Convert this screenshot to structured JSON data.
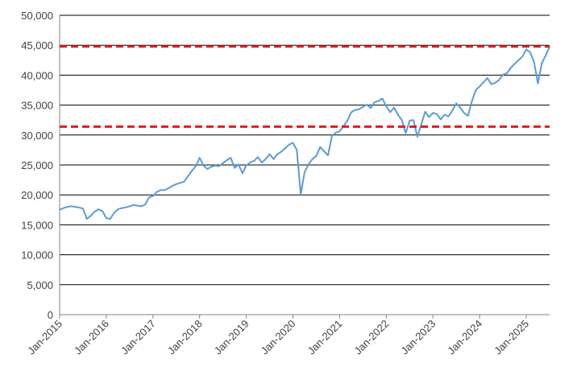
{
  "chart_data": {
    "type": "line",
    "title": "",
    "xlabel": "",
    "ylabel": "",
    "ylim": [
      0,
      50000
    ],
    "y_ticks": [
      0,
      5000,
      10000,
      15000,
      20000,
      25000,
      30000,
      35000,
      40000,
      45000,
      50000
    ],
    "y_tick_labels": [
      "0",
      "5,000",
      "10,000",
      "15,000",
      "20,000",
      "25,000",
      "30,000",
      "35,000",
      "40,000",
      "45,000",
      "50,000"
    ],
    "x_tick_labels": [
      "Jan-2015",
      "Jan-2016",
      "Jan-2017",
      "Jan-2018",
      "Jan-2019",
      "Jan-2020",
      "Jan-2021",
      "Jan-2022",
      "Jan-2023",
      "Jan-2024",
      "Jan-2025"
    ],
    "xlim": [
      "2015-01",
      "2025-07"
    ],
    "grid": "horizontal",
    "legend": "none",
    "colors": {
      "series": "#5b9bd5",
      "reference": "#e31a1c",
      "grid": "#000000",
      "axis": "#808080"
    },
    "series": [
      {
        "x": [
          "2015-01",
          "2015-02",
          "2015-03",
          "2015-04",
          "2015-05",
          "2015-06",
          "2015-07",
          "2015-08",
          "2015-09",
          "2015-10",
          "2015-11",
          "2015-12",
          "2016-01",
          "2016-02",
          "2016-03",
          "2016-04",
          "2016-05",
          "2016-06",
          "2016-07",
          "2016-08",
          "2016-09",
          "2016-10",
          "2016-11",
          "2016-12",
          "2017-01",
          "2017-02",
          "2017-03",
          "2017-04",
          "2017-05",
          "2017-06",
          "2017-07",
          "2017-08",
          "2017-09",
          "2017-10",
          "2017-11",
          "2017-12",
          "2018-01",
          "2018-02",
          "2018-03",
          "2018-04",
          "2018-05",
          "2018-06",
          "2018-07",
          "2018-08",
          "2018-09",
          "2018-10",
          "2018-11",
          "2018-12",
          "2019-01",
          "2019-02",
          "2019-03",
          "2019-04",
          "2019-05",
          "2019-06",
          "2019-07",
          "2019-08",
          "2019-09",
          "2019-10",
          "2019-11",
          "2019-12",
          "2020-01",
          "2020-02",
          "2020-03",
          "2020-04",
          "2020-05",
          "2020-06",
          "2020-07",
          "2020-08",
          "2020-09",
          "2020-10",
          "2020-11",
          "2020-12",
          "2021-01",
          "2021-02",
          "2021-03",
          "2021-04",
          "2021-05",
          "2021-06",
          "2021-07",
          "2021-08",
          "2021-09",
          "2021-10",
          "2021-11",
          "2021-12",
          "2022-01",
          "2022-02",
          "2022-03",
          "2022-04",
          "2022-05",
          "2022-06",
          "2022-07",
          "2022-08",
          "2022-09",
          "2022-10",
          "2022-11",
          "2022-12",
          "2023-01",
          "2023-02",
          "2023-03",
          "2023-04",
          "2023-05",
          "2023-06",
          "2023-07",
          "2023-08",
          "2023-09",
          "2023-10",
          "2023-11",
          "2023-12",
          "2024-01",
          "2024-02",
          "2024-03",
          "2024-04",
          "2024-05",
          "2024-06",
          "2024-07",
          "2024-08",
          "2024-09",
          "2024-10",
          "2024-11",
          "2024-12",
          "2025-01",
          "2025-02",
          "2025-03",
          "2025-04",
          "2025-05",
          "2025-06",
          "2025-07"
        ],
        "values": [
          17500,
          17800,
          18000,
          18100,
          18000,
          17900,
          17700,
          16000,
          16500,
          17200,
          17600,
          17300,
          16100,
          16000,
          17000,
          17600,
          17800,
          17900,
          18100,
          18300,
          18200,
          18100,
          18400,
          19600,
          19800,
          20500,
          20800,
          20800,
          21100,
          21500,
          21800,
          22000,
          22200,
          23100,
          24000,
          24800,
          26200,
          24900,
          24300,
          24700,
          24900,
          24800,
          25300,
          25800,
          26200,
          24500,
          25100,
          23600,
          24900,
          25400,
          25700,
          26300,
          25400,
          26000,
          26800,
          26000,
          26800,
          27200,
          27800,
          28400,
          28700,
          27500,
          20100,
          23800,
          25100,
          26000,
          26500,
          28000,
          27300,
          26600,
          29800,
          30400,
          30600,
          31500,
          32400,
          33800,
          34200,
          34300,
          34700,
          35100,
          34500,
          35500,
          35700,
          36100,
          34800,
          33800,
          34600,
          33400,
          32500,
          30300,
          32400,
          32500,
          29700,
          31800,
          33900,
          33000,
          33700,
          33500,
          32600,
          33400,
          33100,
          34100,
          35300,
          34600,
          33700,
          33200,
          35600,
          37500,
          38100,
          38800,
          39500,
          38500,
          38700,
          39200,
          40100,
          40300,
          41200,
          41900,
          42500,
          43100,
          44300,
          43800,
          42200,
          38600,
          42000,
          43300,
          44800
        ]
      }
    ],
    "reference_lines": [
      {
        "y": 44800
      },
      {
        "y": 31400
      }
    ]
  }
}
